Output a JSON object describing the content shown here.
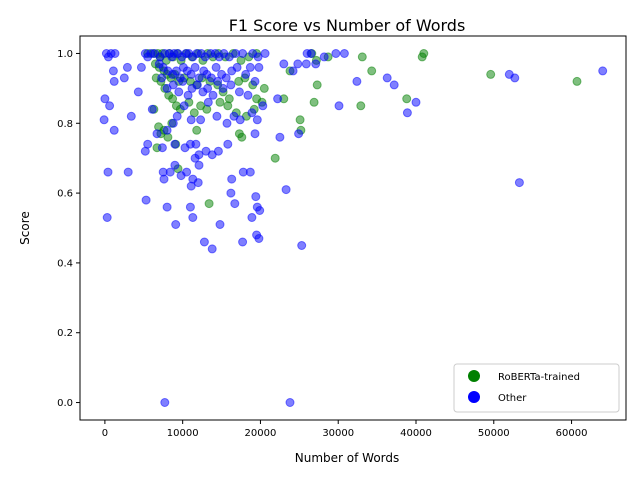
{
  "chart_data": {
    "type": "scatter",
    "title": "F1 Score vs Number of Words",
    "xlabel": "Number of Words",
    "ylabel": "Score",
    "xlim": [
      -3200,
      67000
    ],
    "ylim": [
      -0.05,
      1.05
    ],
    "xticks": [
      0,
      10000,
      20000,
      30000,
      40000,
      50000,
      60000
    ],
    "yticks": [
      0.0,
      0.2,
      0.4,
      0.6,
      0.8,
      1.0
    ],
    "xtick_labels": [
      "0",
      "10000",
      "20000",
      "30000",
      "40000",
      "50000",
      "60000"
    ],
    "ytick_labels": [
      "0.0",
      "0.2",
      "0.4",
      "0.6",
      "0.8",
      "1.0"
    ],
    "grid": false,
    "legend_position": "lower-right",
    "marker_alpha": 0.5,
    "series": [
      {
        "name": "RoBERTa-trained",
        "color": "#008000",
        "points": [
          [
            5500,
            1.0
          ],
          [
            6200,
            1.0
          ],
          [
            6800,
            1.0
          ],
          [
            7100,
            0.99
          ],
          [
            7400,
            1.0
          ],
          [
            7900,
            0.98
          ],
          [
            8300,
            1.0
          ],
          [
            8800,
            0.99
          ],
          [
            9300,
            1.0
          ],
          [
            9800,
            0.98
          ],
          [
            10500,
            1.0
          ],
          [
            11200,
            0.99
          ],
          [
            12000,
            1.0
          ],
          [
            12600,
            0.98
          ],
          [
            13200,
            1.0
          ],
          [
            13900,
            0.99
          ],
          [
            14600,
            1.0
          ],
          [
            15500,
            0.99
          ],
          [
            16500,
            1.0
          ],
          [
            17500,
            0.98
          ],
          [
            18500,
            0.99
          ],
          [
            19500,
            1.0
          ],
          [
            6500,
            0.97
          ],
          [
            7000,
            0.96
          ],
          [
            7600,
            0.95
          ],
          [
            8000,
            0.94
          ],
          [
            8500,
            0.93
          ],
          [
            9000,
            0.94
          ],
          [
            9500,
            0.92
          ],
          [
            10200,
            0.93
          ],
          [
            11000,
            0.92
          ],
          [
            11800,
            0.91
          ],
          [
            12500,
            0.93
          ],
          [
            13500,
            0.92
          ],
          [
            14500,
            0.91
          ],
          [
            15200,
            0.89
          ],
          [
            16000,
            0.87
          ],
          [
            17200,
            0.92
          ],
          [
            18000,
            0.93
          ],
          [
            19000,
            0.91
          ],
          [
            20500,
            0.9
          ],
          [
            6600,
            0.93
          ],
          [
            7200,
            0.92
          ],
          [
            7700,
            0.9
          ],
          [
            8200,
            0.88
          ],
          [
            8700,
            0.87
          ],
          [
            9200,
            0.85
          ],
          [
            9700,
            0.84
          ],
          [
            10800,
            0.86
          ],
          [
            11500,
            0.83
          ],
          [
            12300,
            0.85
          ],
          [
            13100,
            0.84
          ],
          [
            14800,
            0.86
          ],
          [
            15800,
            0.85
          ],
          [
            16900,
            0.83
          ],
          [
            18200,
            0.82
          ],
          [
            19200,
            0.84
          ],
          [
            6300,
            0.84
          ],
          [
            6900,
            0.79
          ],
          [
            7200,
            0.77
          ],
          [
            7600,
            0.78
          ],
          [
            8100,
            0.76
          ],
          [
            8600,
            0.8
          ],
          [
            9100,
            0.74
          ],
          [
            6700,
            0.73
          ],
          [
            11800,
            0.78
          ],
          [
            17300,
            0.77
          ],
          [
            17600,
            0.76
          ],
          [
            19500,
            0.87
          ],
          [
            20200,
            0.86
          ],
          [
            9400,
            0.67
          ],
          [
            13400,
            0.57
          ],
          [
            21900,
            0.7
          ],
          [
            23000,
            0.87
          ],
          [
            23800,
            0.95
          ],
          [
            25100,
            0.81
          ],
          [
            25200,
            0.78
          ],
          [
            26600,
            1.0
          ],
          [
            26900,
            0.86
          ],
          [
            27200,
            0.98
          ],
          [
            27300,
            0.91
          ],
          [
            28700,
            0.99
          ],
          [
            32900,
            0.85
          ],
          [
            33100,
            0.99
          ],
          [
            34300,
            0.95
          ],
          [
            38800,
            0.87
          ],
          [
            40800,
            0.99
          ],
          [
            41000,
            1.0
          ],
          [
            49600,
            0.94
          ],
          [
            60700,
            0.92
          ]
        ]
      },
      {
        "name": "Other",
        "color": "#0000ff",
        "points": [
          [
            200,
            1.0
          ],
          [
            450,
            0.99
          ],
          [
            800,
            1.0
          ],
          [
            1300,
            1.0
          ],
          [
            5200,
            1.0
          ],
          [
            5500,
            0.99
          ],
          [
            5900,
            1.0
          ],
          [
            6400,
            1.0
          ],
          [
            7100,
            0.99
          ],
          [
            7700,
            1.0
          ],
          [
            8300,
            1.0
          ],
          [
            8600,
            0.99
          ],
          [
            8900,
            1.0
          ],
          [
            9400,
            1.0
          ],
          [
            9900,
            0.99
          ],
          [
            10400,
            1.0
          ],
          [
            10800,
            1.0
          ],
          [
            11300,
            0.99
          ],
          [
            11800,
            1.0
          ],
          [
            12400,
            1.0
          ],
          [
            12900,
            0.99
          ],
          [
            13600,
            1.0
          ],
          [
            14200,
            1.0
          ],
          [
            14700,
            0.99
          ],
          [
            15300,
            1.0
          ],
          [
            16000,
            0.99
          ],
          [
            16800,
            1.0
          ],
          [
            17700,
            1.0
          ],
          [
            19000,
            1.0
          ],
          [
            19700,
            0.99
          ],
          [
            20600,
            1.0
          ],
          [
            26000,
            1.0
          ],
          [
            26500,
            1.0
          ],
          [
            29700,
            1.0
          ],
          [
            30800,
            1.0
          ],
          [
            7000,
            0.97
          ],
          [
            7500,
            0.96
          ],
          [
            8100,
            0.95
          ],
          [
            8700,
            0.94
          ],
          [
            9200,
            0.95
          ],
          [
            9700,
            0.93
          ],
          [
            10100,
            0.96
          ],
          [
            10600,
            0.95
          ],
          [
            11100,
            0.94
          ],
          [
            11600,
            0.96
          ],
          [
            12100,
            0.93
          ],
          [
            12700,
            0.95
          ],
          [
            13100,
            0.94
          ],
          [
            13700,
            0.93
          ],
          [
            14300,
            0.96
          ],
          [
            15000,
            0.94
          ],
          [
            15600,
            0.93
          ],
          [
            16300,
            0.95
          ],
          [
            17000,
            0.96
          ],
          [
            18100,
            0.94
          ],
          [
            18700,
            0.96
          ],
          [
            19800,
            0.96
          ],
          [
            7300,
            0.93
          ],
          [
            8000,
            0.9
          ],
          [
            8800,
            0.91
          ],
          [
            9500,
            0.89
          ],
          [
            10000,
            0.92
          ],
          [
            10700,
            0.88
          ],
          [
            11200,
            0.9
          ],
          [
            11900,
            0.91
          ],
          [
            12600,
            0.89
          ],
          [
            13200,
            0.9
          ],
          [
            13900,
            0.88
          ],
          [
            14500,
            0.92
          ],
          [
            15200,
            0.9
          ],
          [
            16200,
            0.91
          ],
          [
            17300,
            0.89
          ],
          [
            18400,
            0.88
          ],
          [
            19300,
            0.92
          ],
          [
            0,
            0.87
          ],
          [
            600,
            0.85
          ],
          [
            1100,
            0.95
          ],
          [
            1200,
            0.92
          ],
          [
            2500,
            0.93
          ],
          [
            2900,
            0.96
          ],
          [
            3400,
            0.82
          ],
          [
            4300,
            0.89
          ],
          [
            4700,
            0.96
          ],
          [
            6100,
            0.84
          ],
          [
            6700,
            0.77
          ],
          [
            7400,
            0.73
          ],
          [
            8000,
            0.78
          ],
          [
            8800,
            0.8
          ],
          [
            9300,
            0.82
          ],
          [
            10200,
            0.85
          ],
          [
            11100,
            0.81
          ],
          [
            11700,
            0.74
          ],
          [
            12300,
            0.81
          ],
          [
            13300,
            0.86
          ],
          [
            14400,
            0.82
          ],
          [
            15700,
            0.8
          ],
          [
            16600,
            0.82
          ],
          [
            17400,
            0.81
          ],
          [
            18900,
            0.83
          ],
          [
            19600,
            0.81
          ],
          [
            20300,
            0.85
          ],
          [
            -100,
            0.81
          ],
          [
            1200,
            0.78
          ],
          [
            5500,
            0.74
          ],
          [
            5200,
            0.72
          ],
          [
            9000,
            0.74
          ],
          [
            10300,
            0.73
          ],
          [
            11000,
            0.74
          ],
          [
            12100,
            0.71
          ],
          [
            13800,
            0.71
          ],
          [
            14600,
            0.72
          ],
          [
            15800,
            0.74
          ],
          [
            17800,
            0.66
          ],
          [
            18700,
            0.66
          ],
          [
            19300,
            0.77
          ],
          [
            11600,
            0.7
          ],
          [
            12100,
            0.68
          ],
          [
            13000,
            0.72
          ],
          [
            7500,
            0.66
          ],
          [
            7600,
            0.64
          ],
          [
            8400,
            0.66
          ],
          [
            9000,
            0.68
          ],
          [
            9800,
            0.65
          ],
          [
            10500,
            0.66
          ],
          [
            11100,
            0.62
          ],
          [
            11300,
            0.64
          ],
          [
            12000,
            0.63
          ],
          [
            16300,
            0.64
          ],
          [
            16700,
            0.57
          ],
          [
            17700,
            0.46
          ],
          [
            16200,
            0.6
          ],
          [
            19400,
            0.59
          ],
          [
            19600,
            0.56
          ],
          [
            19900,
            0.55
          ],
          [
            19800,
            0.47
          ],
          [
            19500,
            0.48
          ],
          [
            18900,
            0.53
          ],
          [
            8000,
            0.56
          ],
          [
            9100,
            0.51
          ],
          [
            11300,
            0.53
          ],
          [
            11000,
            0.56
          ],
          [
            12800,
            0.46
          ],
          [
            13800,
            0.44
          ],
          [
            14800,
            0.51
          ],
          [
            5300,
            0.58
          ],
          [
            3000,
            0.66
          ],
          [
            400,
            0.66
          ],
          [
            300,
            0.53
          ],
          [
            22500,
            0.76
          ],
          [
            23300,
            0.61
          ],
          [
            24900,
            0.77
          ],
          [
            25300,
            0.45
          ],
          [
            22200,
            0.87
          ],
          [
            23000,
            0.97
          ],
          [
            24200,
            0.95
          ],
          [
            24800,
            0.97
          ],
          [
            25900,
            0.97
          ],
          [
            27100,
            0.97
          ],
          [
            28200,
            0.99
          ],
          [
            30100,
            0.85
          ],
          [
            32400,
            0.92
          ],
          [
            36300,
            0.93
          ],
          [
            37200,
            0.91
          ],
          [
            38900,
            0.83
          ],
          [
            40000,
            0.86
          ],
          [
            52000,
            0.94
          ],
          [
            52700,
            0.93
          ],
          [
            53300,
            0.63
          ],
          [
            64000,
            0.95
          ],
          [
            7700,
            0.0
          ],
          [
            23800,
            0.0
          ]
        ]
      }
    ]
  }
}
